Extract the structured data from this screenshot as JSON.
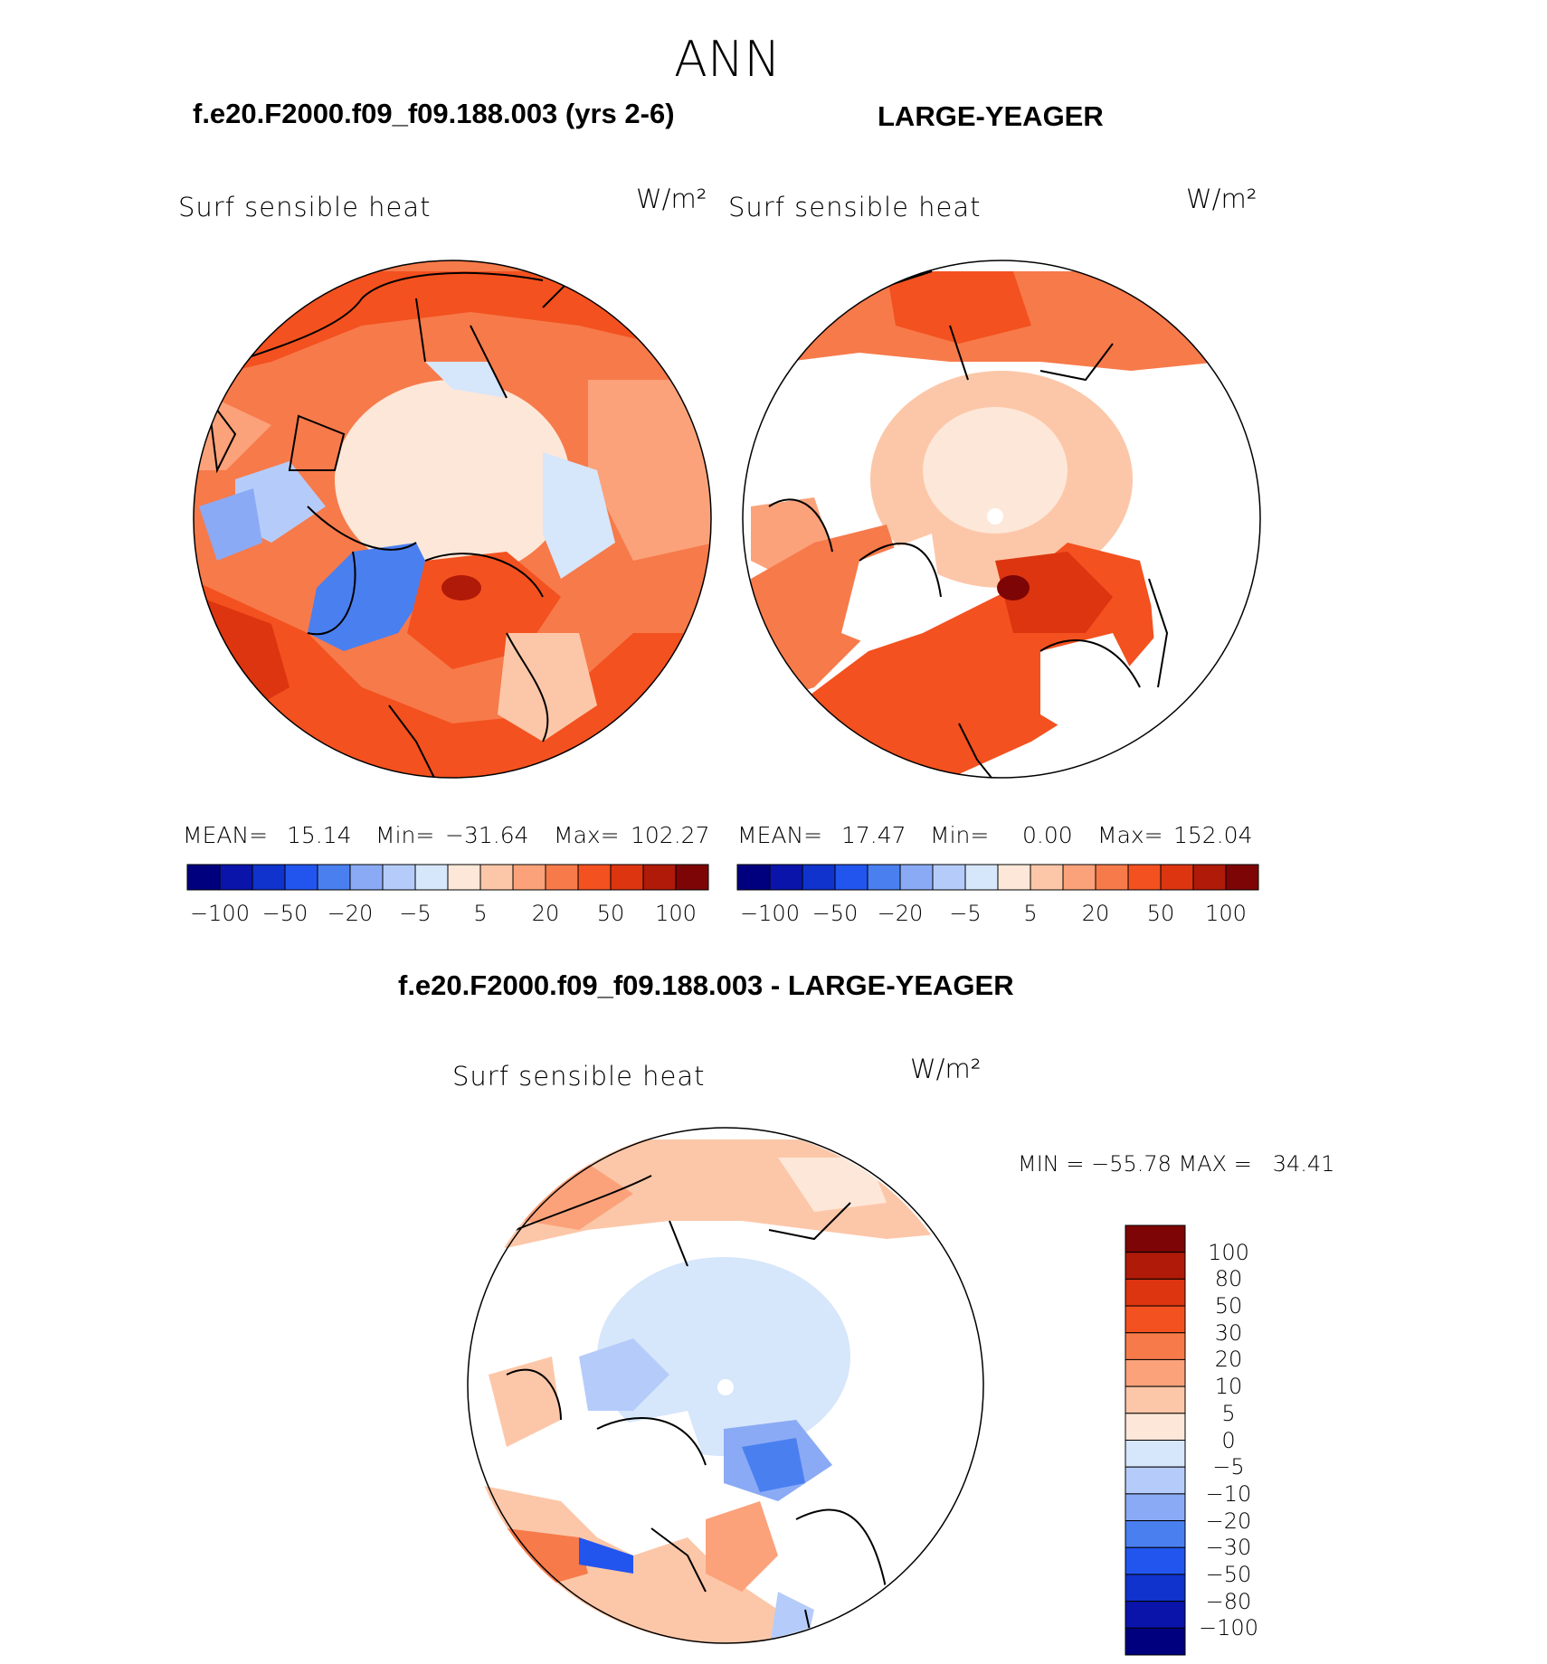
{
  "main_title": "ANN",
  "panels": [
    {
      "title": "f.e20.F2000.f09_f09.188.003 (yrs 2-6)",
      "variable": "Surf sensible heat",
      "units": "W/m²",
      "stats": {
        "mean_label": "MEAN=",
        "mean": "15.14",
        "min_label": "Min=",
        "min": "−31.64",
        "max_label": "Max=",
        "max": "102.27"
      }
    },
    {
      "title": "LARGE-YEAGER",
      "variable": "Surf sensible heat",
      "units": "W/m²",
      "stats": {
        "mean_label": "MEAN=",
        "mean": "17.47",
        "min_label": "Min=",
        "min": "0.00",
        "max_label": "Max=",
        "max": "152.04"
      }
    }
  ],
  "diff_panel": {
    "title": "f.e20.F2000.f09_f09.188.003 - LARGE-YEAGER",
    "variable": "Surf sensible heat",
    "units": "W/m²",
    "minmax": "MIN = −55.78 MAX =   34.41"
  },
  "chart_data": [
    {
      "type": "heatmap",
      "projection": "north-polar stereographic",
      "title": "f.e20.F2000.f09_f09.188.003 (yrs 2-6)",
      "subtitle": "Surf sensible heat",
      "units": "W/m²",
      "mean": 15.14,
      "min": -31.64,
      "max": 102.27,
      "contour_levels": [
        -100,
        -80,
        -50,
        -30,
        -20,
        -10,
        -5,
        0,
        5,
        10,
        20,
        30,
        50,
        80,
        100
      ],
      "colorbar_tick_labels": [
        "−100",
        "−50",
        "−20",
        "−5",
        "5",
        "20",
        "50",
        "100"
      ]
    },
    {
      "type": "heatmap",
      "projection": "north-polar stereographic",
      "title": "LARGE-YEAGER",
      "subtitle": "Surf sensible heat",
      "units": "W/m²",
      "mean": 17.47,
      "min": 0.0,
      "max": 152.04,
      "contour_levels": [
        -100,
        -80,
        -50,
        -30,
        -20,
        -10,
        -5,
        0,
        5,
        10,
        20,
        30,
        50,
        80,
        100
      ],
      "colorbar_tick_labels": [
        "−100",
        "−50",
        "−20",
        "−5",
        "5",
        "20",
        "50",
        "100"
      ]
    },
    {
      "type": "heatmap",
      "projection": "north-polar stereographic",
      "title": "f.e20.F2000.f09_f09.188.003 - LARGE-YEAGER",
      "subtitle": "Surf sensible heat",
      "units": "W/m²",
      "min": -55.78,
      "max": 34.41,
      "colorbar_orientation": "vertical",
      "colorbar_tick_labels": [
        "100",
        "80",
        "50",
        "30",
        "20",
        "10",
        "5",
        "0",
        "−5",
        "−10",
        "−20",
        "−30",
        "−50",
        "−80",
        "−100"
      ]
    }
  ],
  "colormap": [
    "#00007f",
    "#0a14aa",
    "#0f33cc",
    "#2255ee",
    "#4a7ff0",
    "#8aaaf5",
    "#b5ccfa",
    "#d6e6fb",
    "#fde7d8",
    "#fcc7a8",
    "#fba27a",
    "#f77a4a",
    "#f3511f",
    "#dc3510",
    "#b01a08",
    "#7e0505"
  ]
}
